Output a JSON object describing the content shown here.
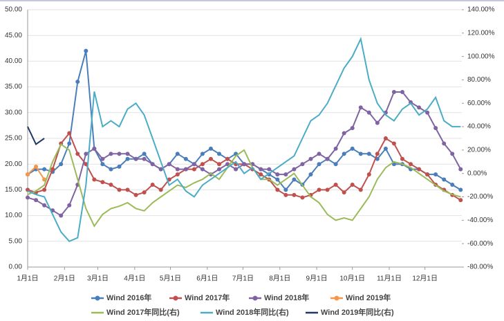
{
  "chart_data": {
    "type": "line",
    "marker_series_axis": "y",
    "x": [
      1,
      8,
      15,
      22,
      29,
      36,
      43,
      50,
      57,
      64,
      71,
      78,
      85,
      92,
      99,
      106,
      113,
      120,
      127,
      134,
      141,
      148,
      155,
      162,
      169,
      176,
      183,
      190,
      197,
      204,
      211,
      218,
      225,
      232,
      239,
      246,
      253,
      260,
      267,
      274,
      281,
      288,
      295,
      302,
      309,
      316,
      323,
      330,
      337,
      344,
      351,
      358,
      365
    ],
    "xlim": [
      1,
      366
    ],
    "xticks": [
      {
        "value": 1,
        "label": "1月1日"
      },
      {
        "value": 32,
        "label": "2月1日"
      },
      {
        "value": 60,
        "label": "3月1日"
      },
      {
        "value": 91,
        "label": "4月1日"
      },
      {
        "value": 121,
        "label": "5月1日"
      },
      {
        "value": 152,
        "label": "6月1日"
      },
      {
        "value": 182,
        "label": "7月1日"
      },
      {
        "value": 213,
        "label": "8月1日"
      },
      {
        "value": 244,
        "label": "9月1日"
      },
      {
        "value": 274,
        "label": "10月1日"
      },
      {
        "value": 305,
        "label": "11月1日"
      },
      {
        "value": 335,
        "label": "12月1日"
      }
    ],
    "ylim": [
      0,
      50
    ],
    "yticks": [
      {
        "value": 0,
        "label": "0.00"
      },
      {
        "value": 5,
        "label": "5.00"
      },
      {
        "value": 10,
        "label": "10.00"
      },
      {
        "value": 15,
        "label": "15.00"
      },
      {
        "value": 20,
        "label": "20.00"
      },
      {
        "value": 25,
        "label": "25.00"
      },
      {
        "value": 30,
        "label": "30.00"
      },
      {
        "value": 35,
        "label": "35.00"
      },
      {
        "value": 40,
        "label": "40.00"
      },
      {
        "value": 45,
        "label": "45.00"
      },
      {
        "value": 50,
        "label": "50.00"
      }
    ],
    "y2lim": [
      -80,
      140
    ],
    "y2ticks": [
      {
        "value": -80,
        "label": "-80.00%"
      },
      {
        "value": -60,
        "label": "-60.00%"
      },
      {
        "value": -40,
        "label": "-40.00%"
      },
      {
        "value": -20,
        "label": "-20.00%"
      },
      {
        "value": 0,
        "label": "0.00%"
      },
      {
        "value": 20,
        "label": "20.00%"
      },
      {
        "value": 40,
        "label": "40.00%"
      },
      {
        "value": 60,
        "label": "60.00%"
      },
      {
        "value": 80,
        "label": "80.00%"
      },
      {
        "value": 100,
        "label": "100.00%"
      },
      {
        "value": 120,
        "label": "120.00%"
      },
      {
        "value": 140,
        "label": "140.00%"
      }
    ],
    "grid": true,
    "legend": "bottom",
    "series": [
      {
        "name": "Wind 2016年",
        "color": "#4a7ebb",
        "axis": "y",
        "values": [
          18,
          19,
          19,
          18.5,
          20,
          24,
          36,
          42,
          23,
          20,
          19,
          19.5,
          21,
          21,
          22,
          20,
          19,
          20,
          22,
          21,
          20,
          22,
          23,
          22,
          21,
          22,
          20,
          20,
          19,
          18,
          17,
          15,
          17,
          16,
          18,
          20,
          21,
          20,
          22,
          23,
          22,
          22,
          21,
          23,
          20,
          20,
          19,
          19,
          18,
          18,
          17,
          16,
          15
        ]
      },
      {
        "name": "Wind 2017年",
        "color": "#c0504d",
        "axis": "y",
        "values": [
          15,
          14.5,
          15,
          19,
          24,
          26,
          22,
          20,
          17,
          16.5,
          16,
          15,
          15,
          14,
          14.5,
          16,
          15,
          17,
          18,
          19,
          19,
          20,
          21,
          20,
          21,
          20,
          20,
          19,
          18,
          17,
          15,
          14,
          14,
          13.5,
          14,
          15,
          15,
          16,
          14.5,
          16,
          15,
          18,
          22,
          25,
          24,
          21,
          20,
          19,
          18,
          16,
          15,
          14,
          13
        ]
      },
      {
        "name": "Wind 2018年",
        "color": "#8064a2",
        "axis": "y",
        "values": [
          13.5,
          13,
          12,
          11,
          10,
          12,
          16,
          22,
          23,
          21,
          22,
          22,
          22,
          21,
          21,
          20,
          19,
          20,
          19,
          19,
          20,
          19,
          18,
          19,
          20,
          19,
          20,
          20,
          19,
          19,
          18,
          18,
          19,
          20,
          21,
          22,
          21,
          23,
          26,
          27,
          31,
          30,
          28,
          30,
          34,
          34,
          32,
          31,
          30,
          27,
          24,
          22,
          19
        ]
      },
      {
        "name": "Wind 2019年",
        "color": "#f79646",
        "axis": "y",
        "values": [
          18,
          19.5,
          17,
          null,
          null,
          null,
          null,
          null,
          null,
          null,
          null,
          null,
          null,
          null,
          null,
          null,
          null,
          null,
          null,
          null,
          null,
          null,
          null,
          null,
          null,
          null,
          null,
          null,
          null,
          null,
          null,
          null,
          null,
          null,
          null,
          null,
          null,
          null,
          null,
          null,
          null,
          null,
          null,
          null,
          null,
          null,
          null,
          null,
          null,
          null,
          null,
          null,
          null
        ]
      },
      {
        "name": "Wind 2017年同比(右)",
        "color": "#9bbb59",
        "axis": "y2",
        "values": [
          -18,
          -15,
          -10,
          10,
          25,
          20,
          -5,
          -30,
          -45,
          -35,
          -30,
          -28,
          -25,
          -30,
          -32,
          -25,
          -20,
          -15,
          -10,
          -12,
          -8,
          -5,
          0,
          -5,
          5,
          15,
          20,
          5,
          -5,
          -5,
          -10,
          -5,
          0,
          -10,
          -20,
          -25,
          -35,
          -40,
          -38,
          -40,
          -30,
          -20,
          -5,
          5,
          10,
          8,
          5,
          0,
          -5,
          -10,
          -15,
          -18,
          -20
        ]
      },
      {
        "name": "Wind 2018年同比(右)",
        "color": "#4bacc6",
        "axis": "y2",
        "values": [
          -15,
          -18,
          -20,
          -35,
          -50,
          -58,
          -55,
          -10,
          70,
          40,
          45,
          40,
          55,
          60,
          50,
          30,
          10,
          -10,
          -5,
          -15,
          -20,
          -10,
          -5,
          0,
          5,
          10,
          0,
          5,
          -5,
          0,
          5,
          10,
          15,
          30,
          45,
          50,
          60,
          75,
          90,
          100,
          115,
          80,
          60,
          50,
          45,
          55,
          60,
          50,
          55,
          65,
          45,
          40,
          40
        ]
      },
      {
        "name": "Wind 2019年同比(右)",
        "color": "#1f3864",
        "axis": "y2",
        "values": [
          40,
          25,
          30,
          null,
          null,
          null,
          null,
          null,
          null,
          null,
          null,
          null,
          null,
          null,
          null,
          null,
          null,
          null,
          null,
          null,
          null,
          null,
          null,
          null,
          null,
          null,
          null,
          null,
          null,
          null,
          null,
          null,
          null,
          null,
          null,
          null,
          null,
          null,
          null,
          null,
          null,
          null,
          null,
          null,
          null,
          null,
          null,
          null,
          null,
          null,
          null,
          null,
          null
        ]
      }
    ]
  }
}
